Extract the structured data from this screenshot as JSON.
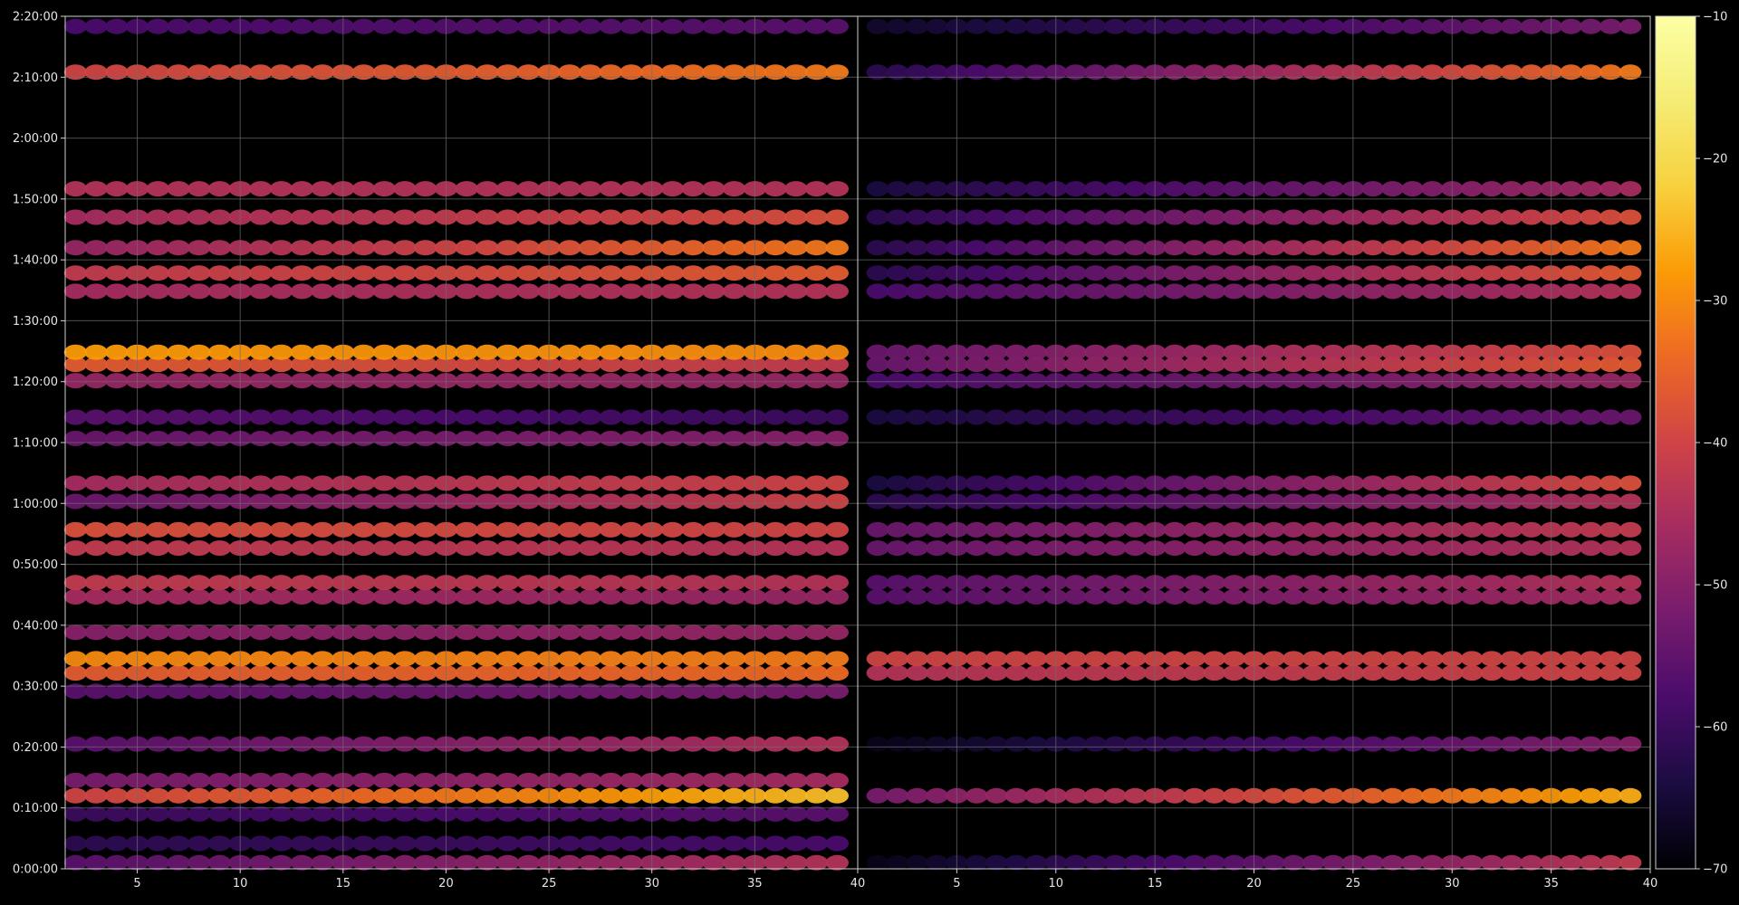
{
  "chart_data": {
    "type": "heatmap",
    "title": "",
    "xlabel": "",
    "ylabel": "",
    "panels": [
      {
        "id": "left",
        "xlim": [
          1.5,
          40
        ],
        "x_ticks": [
          5,
          10,
          15,
          20,
          25,
          30,
          35,
          40
        ],
        "x_tick_labels": [
          "5",
          "10",
          "15",
          "20",
          "25",
          "30",
          "35",
          "40"
        ],
        "columns": [
          2,
          3,
          4,
          5,
          6,
          7,
          8,
          9,
          10,
          11,
          12,
          13,
          14,
          15,
          16,
          17,
          18,
          19,
          20,
          21,
          22,
          23,
          24,
          25,
          26,
          27,
          28,
          29,
          30,
          31,
          32,
          33,
          34,
          35,
          36,
          37,
          38,
          39
        ],
        "bands": [
          {
            "time_sec": 60,
            "start": -56,
            "end": -44
          },
          {
            "time_sec": 250,
            "start": -62,
            "end": -58
          },
          {
            "time_sec": 540,
            "start": -60,
            "end": -56
          },
          {
            "time_sec": 720,
            "start": -40,
            "end": -24
          },
          {
            "time_sec": 870,
            "start": -52,
            "end": -46
          },
          {
            "time_sec": 1230,
            "start": -56,
            "end": -44
          },
          {
            "time_sec": 1750,
            "start": -56,
            "end": -52
          },
          {
            "time_sec": 1930,
            "start": -36,
            "end": -34
          },
          {
            "time_sec": 2070,
            "start": -30,
            "end": -32
          },
          {
            "time_sec": 2330,
            "start": -50,
            "end": -48
          },
          {
            "time_sec": 2680,
            "start": -46,
            "end": -48
          },
          {
            "time_sec": 2820,
            "start": -42,
            "end": -44
          },
          {
            "time_sec": 3160,
            "start": -42,
            "end": -44
          },
          {
            "time_sec": 3340,
            "start": -38,
            "end": -40
          },
          {
            "time_sec": 3620,
            "start": -54,
            "end": -40
          },
          {
            "time_sec": 3800,
            "start": -46,
            "end": -40
          },
          {
            "time_sec": 4240,
            "start": -54,
            "end": -50
          },
          {
            "time_sec": 4450,
            "start": -56,
            "end": -60
          },
          {
            "time_sec": 4810,
            "start": -48,
            "end": -48
          },
          {
            "time_sec": 4970,
            "start": -36,
            "end": -42
          },
          {
            "time_sec": 5090,
            "start": -28,
            "end": -30
          },
          {
            "time_sec": 5690,
            "start": -46,
            "end": -44
          },
          {
            "time_sec": 5870,
            "start": -42,
            "end": -36
          },
          {
            "time_sec": 6120,
            "start": -48,
            "end": -32
          },
          {
            "time_sec": 6420,
            "start": -46,
            "end": -38
          },
          {
            "time_sec": 6700,
            "start": -44,
            "end": -44
          },
          {
            "time_sec": 7850,
            "start": -40,
            "end": -32
          },
          {
            "time_sec": 8300,
            "start": -58,
            "end": -56
          }
        ]
      },
      {
        "id": "right",
        "xlim": [
          0,
          40
        ],
        "x_ticks": [
          5,
          10,
          15,
          20,
          25,
          30,
          35,
          40
        ],
        "x_tick_labels": [
          "5",
          "10",
          "15",
          "20",
          "25",
          "30",
          "35",
          "40"
        ],
        "columns": [
          1,
          2,
          3,
          4,
          5,
          6,
          7,
          8,
          9,
          10,
          11,
          12,
          13,
          14,
          15,
          16,
          17,
          18,
          19,
          20,
          21,
          22,
          23,
          24,
          25,
          26,
          27,
          28,
          29,
          30,
          31,
          32,
          33,
          34,
          35,
          36,
          37,
          38,
          39
        ],
        "bands": [
          {
            "time_sec": 60,
            "start": -68,
            "end": -42
          },
          {
            "time_sec": 720,
            "start": -52,
            "end": -26
          },
          {
            "time_sec": 1230,
            "start": -68,
            "end": -50
          },
          {
            "time_sec": 1930,
            "start": -44,
            "end": -40
          },
          {
            "time_sec": 2070,
            "start": -40,
            "end": -40
          },
          {
            "time_sec": 2680,
            "start": -56,
            "end": -46
          },
          {
            "time_sec": 2820,
            "start": -56,
            "end": -44
          },
          {
            "time_sec": 3160,
            "start": -54,
            "end": -44
          },
          {
            "time_sec": 3340,
            "start": -54,
            "end": -42
          },
          {
            "time_sec": 3620,
            "start": -62,
            "end": -44
          },
          {
            "time_sec": 3800,
            "start": -64,
            "end": -38
          },
          {
            "time_sec": 4450,
            "start": -64,
            "end": -54
          },
          {
            "time_sec": 4810,
            "start": -58,
            "end": -48
          },
          {
            "time_sec": 4970,
            "start": -54,
            "end": -36
          },
          {
            "time_sec": 5090,
            "start": -54,
            "end": -38
          },
          {
            "time_sec": 5690,
            "start": -58,
            "end": -44
          },
          {
            "time_sec": 5870,
            "start": -62,
            "end": -36
          },
          {
            "time_sec": 6120,
            "start": -62,
            "end": -32
          },
          {
            "time_sec": 6420,
            "start": -62,
            "end": -38
          },
          {
            "time_sec": 6700,
            "start": -64,
            "end": -46
          },
          {
            "time_sec": 7850,
            "start": -62,
            "end": -32
          },
          {
            "time_sec": 8300,
            "start": -66,
            "end": -52
          }
        ]
      }
    ],
    "y_axis": {
      "ylim_sec": [
        0,
        8400
      ],
      "ticks_sec": [
        0,
        600,
        1200,
        1800,
        2400,
        3000,
        3600,
        4200,
        4800,
        5400,
        6000,
        6600,
        7200,
        7800,
        8400
      ],
      "tick_labels": [
        "0:00:00",
        "0:10:00",
        "0:20:00",
        "0:30:00",
        "0:40:00",
        "0:50:00",
        "1:00:00",
        "1:10:00",
        "1:20:00",
        "1:30:00",
        "1:40:00",
        "1:50:00",
        "2:00:00",
        "2:10:00",
        "2:20:00"
      ]
    },
    "colorbar": {
      "colormap": "inferno",
      "range": [
        -70,
        -10
      ],
      "ticks": [
        -70,
        -60,
        -50,
        -40,
        -30,
        -20,
        -10
      ],
      "tick_labels": [
        "−70",
        "−60",
        "−50",
        "−40",
        "−30",
        "−20",
        "−10"
      ]
    },
    "grid": true,
    "colors": {
      "background": "#000000",
      "grid": "#6e6e6e",
      "axis": "#d0d0d0",
      "text": "#e6e6e6"
    }
  }
}
